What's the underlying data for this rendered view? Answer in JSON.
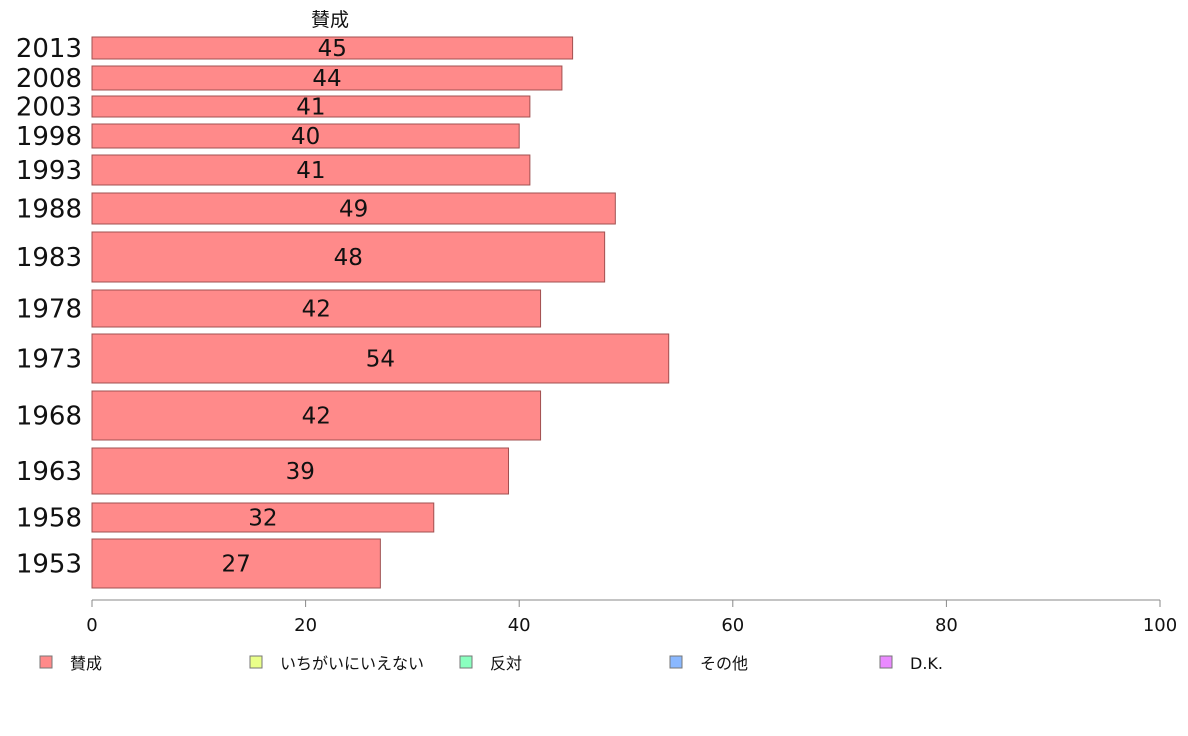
{
  "chart_data": {
    "type": "bar",
    "orientation": "horizontal",
    "stacked": true,
    "series_header": "賛成",
    "categories": [
      "2013",
      "2008",
      "2003",
      "1998",
      "1993",
      "1988",
      "1983",
      "1978",
      "1973",
      "1968",
      "1963",
      "1958",
      "1953"
    ],
    "series": [
      {
        "name": "賛成",
        "color": "#ff8a8a",
        "values": [
          45,
          44,
          41,
          40,
          41,
          49,
          48,
          42,
          54,
          42,
          39,
          32,
          27
        ]
      }
    ],
    "xlim": [
      0,
      100
    ],
    "xticks": [
      "0",
      "20",
      "40",
      "60",
      "80",
      "100"
    ],
    "grid": false,
    "legend_position": "bottom",
    "legend": [
      {
        "label": "賛成",
        "color": "#ff8a8a"
      },
      {
        "label": "いちがいにいえない",
        "color": "#eaff8a"
      },
      {
        "label": "反対",
        "color": "#8affbf"
      },
      {
        "label": "その他",
        "color": "#8ab8ff"
      },
      {
        "label": "D.K.",
        "color": "#ea8aff"
      }
    ]
  }
}
